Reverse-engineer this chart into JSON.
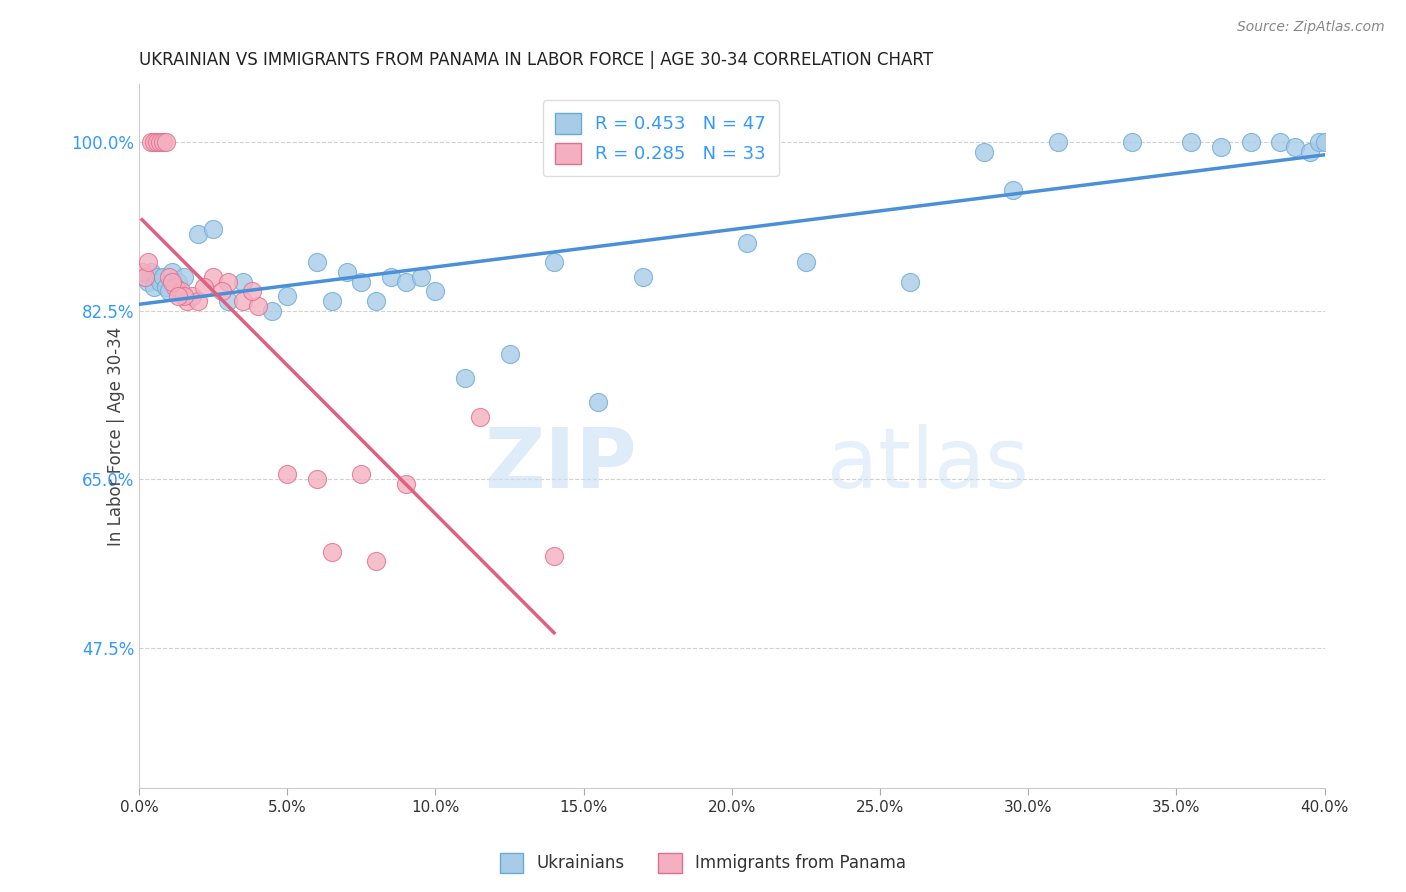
{
  "title": "UKRAINIAN VS IMMIGRANTS FROM PANAMA IN LABOR FORCE | AGE 30-34 CORRELATION CHART",
  "source": "Source: ZipAtlas.com",
  "xlabel_vals": [
    0.0,
    5.0,
    10.0,
    15.0,
    20.0,
    25.0,
    30.0,
    35.0,
    40.0
  ],
  "ylabel_vals": [
    47.5,
    65.0,
    82.5,
    100.0
  ],
  "ylabel_label": "In Labor Force | Age 30-34",
  "xlim": [
    0.0,
    40.0
  ],
  "ylim": [
    33.0,
    106.0
  ],
  "watermark_zip": "ZIP",
  "watermark_atlas": "atlas",
  "series_blue": {
    "label": "Ukrainians",
    "R": 0.453,
    "N": 47,
    "color": "#a8cce8",
    "edge_color": "#6aabd4",
    "x": [
      0.2,
      0.3,
      0.4,
      0.5,
      0.6,
      0.7,
      0.8,
      0.9,
      1.0,
      1.1,
      1.3,
      1.5,
      2.0,
      2.5,
      3.0,
      3.5,
      4.5,
      5.0,
      6.0,
      6.5,
      7.0,
      7.5,
      8.0,
      8.5,
      9.0,
      9.5,
      10.0,
      11.0,
      12.5,
      14.0,
      15.5,
      17.0,
      20.5,
      22.5,
      26.0,
      28.5,
      29.5,
      31.0,
      33.5,
      35.5,
      36.5,
      37.5,
      38.5,
      39.0,
      39.5,
      39.8,
      40.0
    ],
    "y": [
      86.0,
      85.5,
      86.5,
      85.0,
      86.0,
      85.5,
      86.0,
      85.0,
      84.5,
      86.5,
      85.5,
      86.0,
      90.5,
      91.0,
      83.5,
      85.5,
      82.5,
      84.0,
      87.5,
      83.5,
      86.5,
      85.5,
      83.5,
      86.0,
      85.5,
      86.0,
      84.5,
      75.5,
      78.0,
      87.5,
      73.0,
      86.0,
      89.5,
      87.5,
      85.5,
      99.0,
      95.0,
      100.0,
      100.0,
      100.0,
      99.5,
      100.0,
      100.0,
      99.5,
      99.0,
      100.0,
      100.0
    ]
  },
  "series_pink": {
    "label": "Immigrants from Panama",
    "R": 0.285,
    "N": 33,
    "color": "#f4afc0",
    "edge_color": "#e07090",
    "x": [
      0.1,
      0.2,
      0.3,
      0.4,
      0.5,
      0.6,
      0.7,
      0.8,
      0.9,
      1.0,
      1.2,
      1.4,
      1.6,
      1.8,
      2.0,
      2.5,
      3.0,
      3.5,
      4.0,
      5.0,
      6.0,
      7.5,
      9.0,
      11.5,
      14.0,
      1.5,
      2.2,
      3.8,
      6.5,
      8.0,
      1.1,
      1.3,
      2.8
    ],
    "y": [
      86.5,
      86.0,
      87.5,
      100.0,
      100.0,
      100.0,
      100.0,
      100.0,
      100.0,
      86.0,
      85.0,
      84.5,
      83.5,
      84.0,
      83.5,
      86.0,
      85.5,
      83.5,
      83.0,
      65.5,
      65.0,
      65.5,
      64.5,
      71.5,
      57.0,
      84.0,
      85.0,
      84.5,
      57.5,
      56.5,
      85.5,
      84.0,
      84.5
    ]
  },
  "title_color": "#222222",
  "axis_label_color": "#444444",
  "tick_color_y": "#3399ff",
  "tick_color_x": "#333333",
  "grid_color": "#cccccc",
  "regression_blue_color": "#4a90d9",
  "regression_pink_color": "#e06080",
  "source_color": "#888888"
}
